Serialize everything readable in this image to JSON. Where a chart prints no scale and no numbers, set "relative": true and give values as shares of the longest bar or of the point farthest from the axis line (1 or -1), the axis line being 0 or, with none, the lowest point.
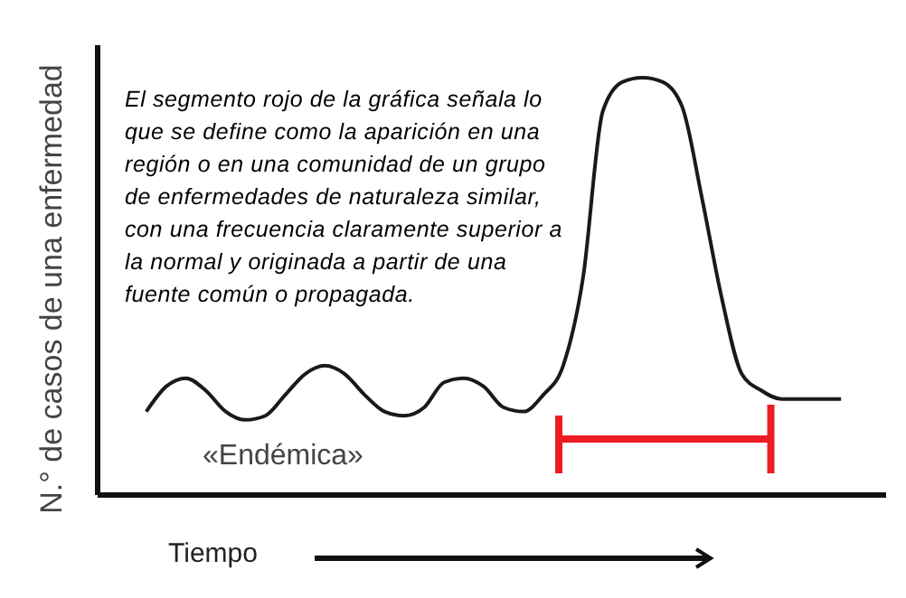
{
  "chart_data": {
    "type": "line",
    "relative": true,
    "ylabel": "N.° de casos de una enfermedad",
    "xlabel": "Tiempo",
    "marker": "none",
    "line_style": "solid",
    "annotations": [
      "El segmento rojo de la gráfica señala lo que  se define como la aparición en una región o en una comunidad de un grupo de enfermedades de naturaleza similar, con una frecuencia claramente superior a la normal y originada a partir de una fuente común o propagada.",
      "«Endémica»"
    ],
    "categories": [
      null,
      null,
      null,
      null,
      null,
      null,
      null,
      null,
      null,
      null,
      null,
      null,
      null,
      null,
      null,
      null,
      null,
      null,
      null,
      null,
      null,
      null,
      null,
      null,
      null,
      null,
      null,
      null,
      null,
      null,
      null,
      null,
      null,
      null,
      null,
      null
    ],
    "series": [
      {
        "color": "#1a1a1a",
        "values": [
          0.2,
          0.26,
          0.28,
          0.25,
          0.2,
          0.18,
          0.19,
          0.24,
          0.29,
          0.31,
          0.29,
          0.24,
          0.2,
          0.19,
          0.21,
          0.27,
          0.28,
          0.26,
          0.21,
          0.2,
          0.24,
          0.31,
          0.52,
          0.92,
          0.99,
          1,
          0.99,
          0.93,
          0.71,
          0.47,
          0.29,
          0.25,
          0.23,
          0.23,
          0.23,
          0.23
        ]
      }
    ]
  }
}
